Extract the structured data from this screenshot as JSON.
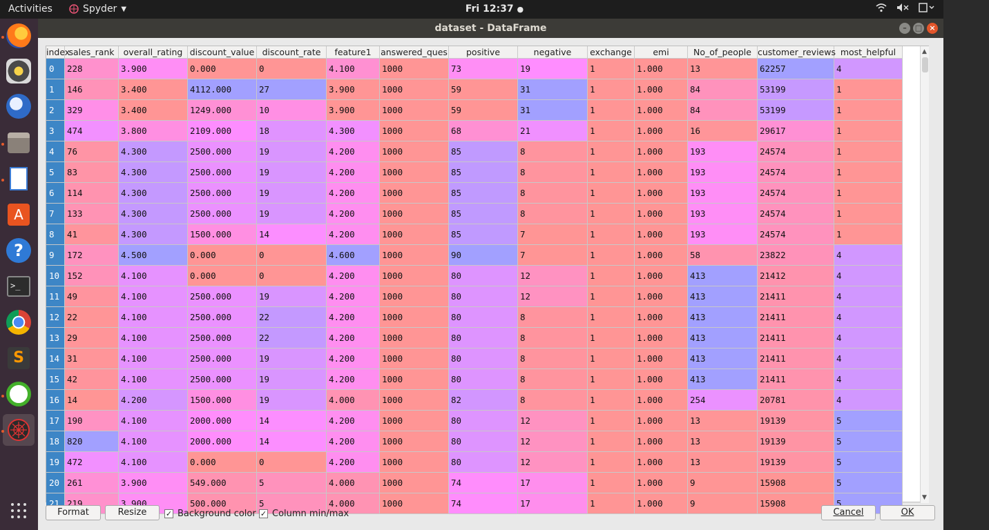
{
  "topbar": {
    "activities": "Activities",
    "app_name": "Spyder",
    "clock": "Fri 12:37",
    "clock_dot": "●",
    "tray": [
      "wifi-icon",
      "volume-muted-icon",
      "power-icon"
    ]
  },
  "dock": [
    "firefox-icon",
    "rhythmbox-icon",
    "thunderbird-icon",
    "files-icon",
    "document-viewer-icon",
    "software-center-icon",
    "help-icon",
    "terminal-icon",
    "chrome-icon",
    "sublime-text-icon",
    "anaconda-navigator-icon",
    "spyder-icon",
    "show-apps-icon"
  ],
  "window": {
    "title": "dataset - DataFrame"
  },
  "table": {
    "columns": [
      "index",
      "sales_rank",
      "overall_rating",
      "discount_value",
      "discount_rate",
      "feature1",
      "answered_ques",
      "positive",
      "negative",
      "exchange",
      "emi",
      "No_of_people",
      "customer_reviews",
      "most_helpful"
    ],
    "rows": [
      [
        "0",
        "228",
        "3.900",
        "0.000",
        "0",
        "4.100",
        "1000",
        "73",
        "19",
        "1",
        "1.000",
        "13",
        "62257",
        "4"
      ],
      [
        "1",
        "146",
        "3.400",
        "4112.000",
        "27",
        "3.900",
        "1000",
        "59",
        "31",
        "1",
        "1.000",
        "84",
        "53199",
        "1"
      ],
      [
        "2",
        "329",
        "3.400",
        "1249.000",
        "10",
        "3.900",
        "1000",
        "59",
        "31",
        "1",
        "1.000",
        "84",
        "53199",
        "1"
      ],
      [
        "3",
        "474",
        "3.800",
        "2109.000",
        "18",
        "4.300",
        "1000",
        "68",
        "21",
        "1",
        "1.000",
        "16",
        "29617",
        "1"
      ],
      [
        "4",
        "76",
        "4.300",
        "2500.000",
        "19",
        "4.200",
        "1000",
        "85",
        "8",
        "1",
        "1.000",
        "193",
        "24574",
        "1"
      ],
      [
        "5",
        "83",
        "4.300",
        "2500.000",
        "19",
        "4.200",
        "1000",
        "85",
        "8",
        "1",
        "1.000",
        "193",
        "24574",
        "1"
      ],
      [
        "6",
        "114",
        "4.300",
        "2500.000",
        "19",
        "4.200",
        "1000",
        "85",
        "8",
        "1",
        "1.000",
        "193",
        "24574",
        "1"
      ],
      [
        "7",
        "133",
        "4.300",
        "2500.000",
        "19",
        "4.200",
        "1000",
        "85",
        "8",
        "1",
        "1.000",
        "193",
        "24574",
        "1"
      ],
      [
        "8",
        "41",
        "4.300",
        "1500.000",
        "14",
        "4.200",
        "1000",
        "85",
        "7",
        "1",
        "1.000",
        "193",
        "24574",
        "1"
      ],
      [
        "9",
        "172",
        "4.500",
        "0.000",
        "0",
        "4.600",
        "1000",
        "90",
        "7",
        "1",
        "1.000",
        "58",
        "23822",
        "4"
      ],
      [
        "10",
        "152",
        "4.100",
        "0.000",
        "0",
        "4.200",
        "1000",
        "80",
        "12",
        "1",
        "1.000",
        "413",
        "21412",
        "4"
      ],
      [
        "11",
        "49",
        "4.100",
        "2500.000",
        "19",
        "4.200",
        "1000",
        "80",
        "12",
        "1",
        "1.000",
        "413",
        "21411",
        "4"
      ],
      [
        "12",
        "22",
        "4.100",
        "2500.000",
        "22",
        "4.200",
        "1000",
        "80",
        "8",
        "1",
        "1.000",
        "413",
        "21411",
        "4"
      ],
      [
        "13",
        "29",
        "4.100",
        "2500.000",
        "22",
        "4.200",
        "1000",
        "80",
        "8",
        "1",
        "1.000",
        "413",
        "21411",
        "4"
      ],
      [
        "14",
        "31",
        "4.100",
        "2500.000",
        "19",
        "4.200",
        "1000",
        "80",
        "8",
        "1",
        "1.000",
        "413",
        "21411",
        "4"
      ],
      [
        "15",
        "42",
        "4.100",
        "2500.000",
        "19",
        "4.200",
        "1000",
        "80",
        "8",
        "1",
        "1.000",
        "413",
        "21411",
        "4"
      ],
      [
        "16",
        "14",
        "4.200",
        "1500.000",
        "19",
        "4.000",
        "1000",
        "82",
        "8",
        "1",
        "1.000",
        "254",
        "20781",
        "4"
      ],
      [
        "17",
        "190",
        "4.100",
        "2000.000",
        "14",
        "4.200",
        "1000",
        "80",
        "12",
        "1",
        "1.000",
        "13",
        "19139",
        "5"
      ],
      [
        "18",
        "820",
        "4.100",
        "2000.000",
        "14",
        "4.200",
        "1000",
        "80",
        "12",
        "1",
        "1.000",
        "13",
        "19139",
        "5"
      ],
      [
        "19",
        "472",
        "4.100",
        "0.000",
        "0",
        "4.200",
        "1000",
        "80",
        "12",
        "1",
        "1.000",
        "13",
        "19139",
        "5"
      ],
      [
        "20",
        "261",
        "3.900",
        "549.000",
        "5",
        "4.000",
        "1000",
        "74",
        "17",
        "1",
        "1.000",
        "9",
        "15908",
        "5"
      ],
      [
        "21",
        "219",
        "3.900",
        "500.000",
        "5",
        "4.000",
        "1000",
        "74",
        "17",
        "1",
        "1.000",
        "9",
        "15908",
        "5"
      ]
    ]
  },
  "bottom": {
    "format_label": "Format",
    "resize_label": "Resize",
    "bg_color_label": "Background color",
    "bg_color_checked": true,
    "col_minmax_label": "Column min/max",
    "col_minmax_checked": true,
    "check_glyph": "✓",
    "cancel_label": "Cancel",
    "ok_label": "OK"
  },
  "colors": {
    "low": "#a2a0ff",
    "mid": "#ff8dff",
    "high": "#ff9595",
    "index_bg": "#3d86c6"
  }
}
